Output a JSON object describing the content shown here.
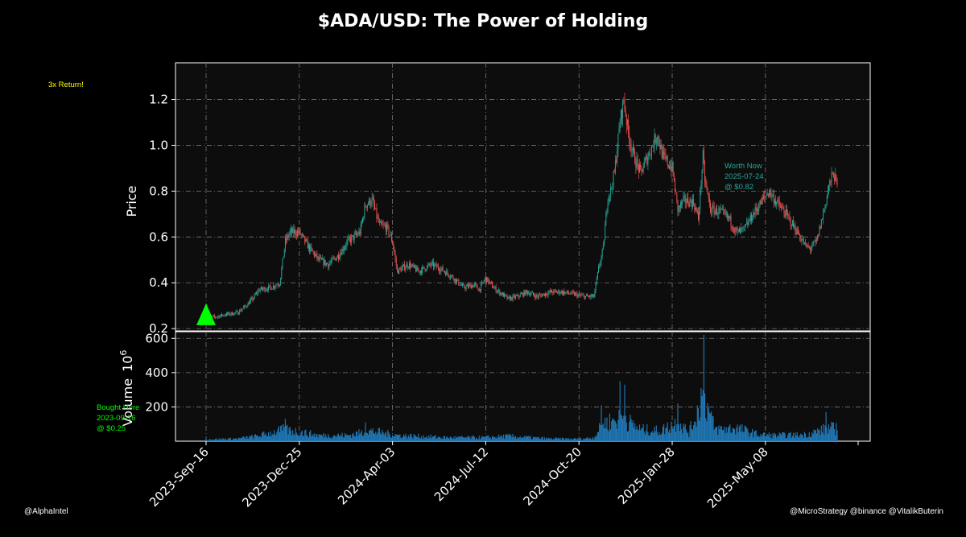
{
  "chart_data": {
    "type": "candlestick",
    "title": "$ADA/USD: The Power of Holding",
    "price_panel": {
      "ylabel": "Price",
      "ylim": [
        0.19,
        1.36
      ],
      "yticks": [
        "0.2",
        "0.4",
        "0.6",
        "0.8",
        "1.0",
        "1.2"
      ],
      "up_color": "#26a69a",
      "down_color": "#ef5350",
      "grid": true,
      "anchors": [
        [
          "2023-09-16",
          0.25
        ],
        [
          "2023-09-25",
          0.25
        ],
        [
          "2023-10-05",
          0.26
        ],
        [
          "2023-10-20",
          0.27
        ],
        [
          "2023-10-29",
          0.3
        ],
        [
          "2023-11-05",
          0.33
        ],
        [
          "2023-11-12",
          0.37
        ],
        [
          "2023-11-25",
          0.38
        ],
        [
          "2023-12-04",
          0.4
        ],
        [
          "2023-12-10",
          0.58
        ],
        [
          "2023-12-15",
          0.62
        ],
        [
          "2023-12-25",
          0.62
        ],
        [
          "2024-01-05",
          0.55
        ],
        [
          "2024-01-15",
          0.5
        ],
        [
          "2024-01-25",
          0.48
        ],
        [
          "2024-02-05",
          0.52
        ],
        [
          "2024-02-15",
          0.58
        ],
        [
          "2024-02-28",
          0.62
        ],
        [
          "2024-03-05",
          0.74
        ],
        [
          "2024-03-12",
          0.76
        ],
        [
          "2024-03-20",
          0.65
        ],
        [
          "2024-03-28",
          0.64
        ],
        [
          "2024-04-03",
          0.58
        ],
        [
          "2024-04-08",
          0.45
        ],
        [
          "2024-04-20",
          0.48
        ],
        [
          "2024-05-01",
          0.45
        ],
        [
          "2024-05-15",
          0.48
        ],
        [
          "2024-05-25",
          0.46
        ],
        [
          "2024-06-05",
          0.43
        ],
        [
          "2024-06-18",
          0.38
        ],
        [
          "2024-06-30",
          0.39
        ],
        [
          "2024-07-05",
          0.37
        ],
        [
          "2024-07-12",
          0.42
        ],
        [
          "2024-07-20",
          0.38
        ],
        [
          "2024-08-05",
          0.33
        ],
        [
          "2024-08-15",
          0.34
        ],
        [
          "2024-08-25",
          0.36
        ],
        [
          "2024-09-05",
          0.34
        ],
        [
          "2024-09-20",
          0.36
        ],
        [
          "2024-10-01",
          0.36
        ],
        [
          "2024-10-15",
          0.35
        ],
        [
          "2024-10-25",
          0.34
        ],
        [
          "2024-11-05",
          0.34
        ],
        [
          "2024-11-10",
          0.46
        ],
        [
          "2024-11-15",
          0.55
        ],
        [
          "2024-11-20",
          0.78
        ],
        [
          "2024-11-23",
          0.8
        ],
        [
          "2024-11-27",
          0.88
        ],
        [
          "2024-12-03",
          1.1
        ],
        [
          "2024-12-07",
          1.2
        ],
        [
          "2024-12-12",
          1.05
        ],
        [
          "2024-12-18",
          0.95
        ],
        [
          "2024-12-25",
          0.88
        ],
        [
          "2025-01-05",
          0.98
        ],
        [
          "2025-01-12",
          1.05
        ],
        [
          "2025-01-18",
          0.95
        ],
        [
          "2025-01-28",
          0.9
        ],
        [
          "2025-02-03",
          0.72
        ],
        [
          "2025-02-10",
          0.76
        ],
        [
          "2025-02-20",
          0.75
        ],
        [
          "2025-02-25",
          0.68
        ],
        [
          "2025-03-02",
          0.95
        ],
        [
          "2025-03-04",
          0.85
        ],
        [
          "2025-03-10",
          0.72
        ],
        [
          "2025-03-20",
          0.71
        ],
        [
          "2025-03-30",
          0.68
        ],
        [
          "2025-04-07",
          0.62
        ],
        [
          "2025-04-15",
          0.63
        ],
        [
          "2025-04-25",
          0.7
        ],
        [
          "2025-05-08",
          0.78
        ],
        [
          "2025-05-12",
          0.8
        ],
        [
          "2025-05-20",
          0.75
        ],
        [
          "2025-05-30",
          0.7
        ],
        [
          "2025-06-10",
          0.63
        ],
        [
          "2025-06-20",
          0.56
        ],
        [
          "2025-06-25",
          0.55
        ],
        [
          "2025-07-02",
          0.58
        ],
        [
          "2025-07-10",
          0.72
        ],
        [
          "2025-07-15",
          0.82
        ],
        [
          "2025-07-20",
          0.88
        ],
        [
          "2025-07-24",
          0.82
        ]
      ]
    },
    "volume_panel": {
      "ylabel": "Volume",
      "ylabel_exponent": "10",
      "ylabel_power": "6",
      "ylim": [
        0,
        620
      ],
      "yticks": [
        "200",
        "400",
        "600"
      ],
      "bar_color": "#1f77b4",
      "grid": true,
      "anchors": [
        [
          "2023-09-16",
          12
        ],
        [
          "2023-10-20",
          18
        ],
        [
          "2023-11-10",
          35
        ],
        [
          "2023-12-10",
          80
        ],
        [
          "2024-01-15",
          40
        ],
        [
          "2024-02-15",
          40
        ],
        [
          "2024-03-10",
          70
        ],
        [
          "2024-04-10",
          40
        ],
        [
          "2024-06-01",
          25
        ],
        [
          "2024-07-10",
          25
        ],
        [
          "2024-08-05",
          35
        ],
        [
          "2024-09-15",
          18
        ],
        [
          "2024-10-20",
          15
        ],
        [
          "2024-11-05",
          25
        ],
        [
          "2024-11-15",
          120
        ],
        [
          "2024-12-01",
          150
        ],
        [
          "2024-12-10",
          140
        ],
        [
          "2024-12-25",
          80
        ],
        [
          "2025-01-15",
          70
        ],
        [
          "2025-02-03",
          130
        ],
        [
          "2025-02-15",
          60
        ],
        [
          "2025-03-03",
          300
        ],
        [
          "2025-03-15",
          80
        ],
        [
          "2025-04-07",
          90
        ],
        [
          "2025-05-01",
          45
        ],
        [
          "2025-05-20",
          40
        ],
        [
          "2025-06-20",
          45
        ],
        [
          "2025-07-15",
          90
        ],
        [
          "2025-07-24",
          85
        ]
      ],
      "spikes": [
        [
          "2023-12-10",
          130
        ],
        [
          "2024-03-05",
          110
        ],
        [
          "2024-11-13",
          210
        ],
        [
          "2024-12-03",
          350
        ],
        [
          "2024-12-08",
          330
        ],
        [
          "2025-02-03",
          220
        ],
        [
          "2025-02-28",
          310
        ],
        [
          "2025-03-03",
          620
        ],
        [
          "2025-07-12",
          170
        ]
      ]
    },
    "x_axis": {
      "start": "2023-09-16",
      "end": "2025-07-24",
      "tick_labels": [
        "2023-Sep-16",
        "2023-Dec-25",
        "2024-Apr-03",
        "2024-Jul-12",
        "2024-Oct-20",
        "2025-Jan-28",
        "2025-May-08"
      ],
      "tick_dates": [
        "2023-09-16",
        "2023-12-25",
        "2024-04-03",
        "2024-07-12",
        "2024-10-20",
        "2025-01-28",
        "2025-05-08"
      ]
    },
    "annotations": {
      "return_note": {
        "text": "3x Return!",
        "color": "#ffff00"
      },
      "buy_note": {
        "lines": [
          "Bought Here",
          "2023-09-16",
          "@ $0.25"
        ],
        "color": "#00ff00",
        "date": "2023-09-16",
        "price": 0.25
      },
      "now_note": {
        "lines": [
          "Worth Now",
          "2025-07-24",
          "@ $0.82"
        ],
        "color": "#26a69a"
      },
      "buy_marker_color": "#00ff00"
    }
  },
  "footer": {
    "left": "@AlphaIntel",
    "right": "@MicroStrategy @binance @VitalikButerin"
  }
}
